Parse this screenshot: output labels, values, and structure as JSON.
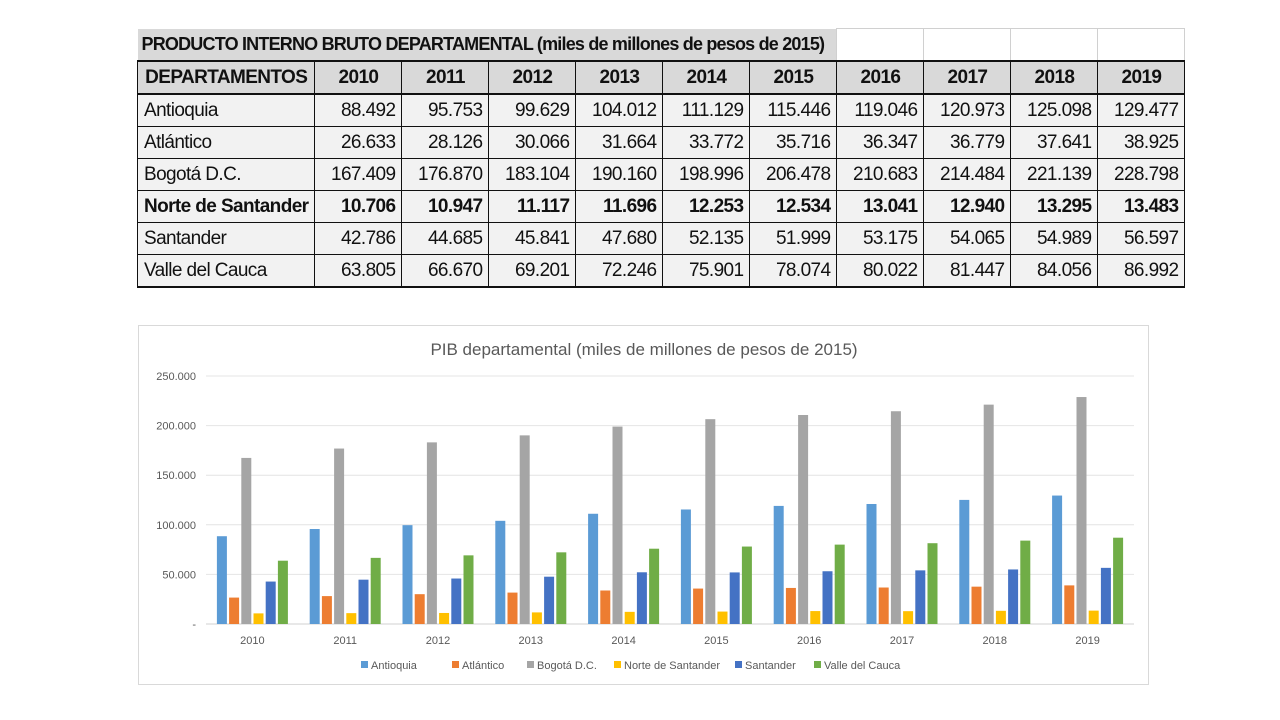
{
  "table": {
    "title": "PRODUCTO INTERNO BRUTO DEPARTAMENTAL (miles de millones de pesos de 2015)",
    "header": [
      "DEPARTAMENTOS",
      "2010",
      "2011",
      "2012",
      "2013",
      "2014",
      "2015",
      "2016",
      "2017",
      "2018",
      "2019"
    ],
    "rows": [
      {
        "name": "Antioquia",
        "bold": false,
        "values": [
          "88.492",
          "95.753",
          "99.629",
          "104.012",
          "111.129",
          "115.446",
          "119.046",
          "120.973",
          "125.098",
          "129.477"
        ]
      },
      {
        "name": "Atlántico",
        "bold": false,
        "values": [
          "26.633",
          "28.126",
          "30.066",
          "31.664",
          "33.772",
          "35.716",
          "36.347",
          "36.779",
          "37.641",
          "38.925"
        ]
      },
      {
        "name": "Bogotá D.C.",
        "bold": false,
        "values": [
          "167.409",
          "176.870",
          "183.104",
          "190.160",
          "198.996",
          "206.478",
          "210.683",
          "214.484",
          "221.139",
          "228.798"
        ]
      },
      {
        "name": "Norte de Santander",
        "bold": true,
        "values": [
          "10.706",
          "10.947",
          "11.117",
          "11.696",
          "12.253",
          "12.534",
          "13.041",
          "12.940",
          "13.295",
          "13.483"
        ]
      },
      {
        "name": "Santander",
        "bold": false,
        "values": [
          "42.786",
          "44.685",
          "45.841",
          "47.680",
          "52.135",
          "51.999",
          "53.175",
          "54.065",
          "54.989",
          "56.597"
        ]
      },
      {
        "name": "Valle del Cauca",
        "bold": false,
        "values": [
          "63.805",
          "66.670",
          "69.201",
          "72.246",
          "75.901",
          "78.074",
          "80.022",
          "81.447",
          "84.056",
          "86.992"
        ]
      }
    ]
  },
  "chart_data": {
    "type": "bar",
    "title": "PIB departamental (miles de millones de pesos de 2015)",
    "categories": [
      "2010",
      "2011",
      "2012",
      "2013",
      "2014",
      "2015",
      "2016",
      "2017",
      "2018",
      "2019"
    ],
    "ylim": [
      0,
      250000
    ],
    "yticks": [
      0,
      50000,
      100000,
      150000,
      200000,
      250000
    ],
    "ytick_labels": [
      "-",
      "50.000",
      "100.000",
      "150.000",
      "200.000",
      "250.000"
    ],
    "grid": true,
    "legend": "bottom",
    "series": [
      {
        "name": "Antioquia",
        "color": "#5b9bd5",
        "values": [
          88492,
          95753,
          99629,
          104012,
          111129,
          115446,
          119046,
          120973,
          125098,
          129477
        ]
      },
      {
        "name": "Atlántico",
        "color": "#ed7d31",
        "values": [
          26633,
          28126,
          30066,
          31664,
          33772,
          35716,
          36347,
          36779,
          37641,
          38925
        ]
      },
      {
        "name": "Bogotá D.C.",
        "color": "#a5a5a5",
        "values": [
          167409,
          176870,
          183104,
          190160,
          198996,
          206478,
          210683,
          214484,
          221139,
          228798
        ]
      },
      {
        "name": "Norte de Santander",
        "color": "#ffc000",
        "values": [
          10706,
          10947,
          11117,
          11696,
          12253,
          12534,
          13041,
          12940,
          13295,
          13483
        ]
      },
      {
        "name": "Santander",
        "color": "#4472c4",
        "values": [
          42786,
          44685,
          45841,
          47680,
          52135,
          51999,
          53175,
          54065,
          54989,
          56597
        ]
      },
      {
        "name": "Valle del Cauca",
        "color": "#70ad47",
        "values": [
          63805,
          66670,
          69201,
          72246,
          75901,
          78074,
          80022,
          81447,
          84056,
          86992
        ]
      }
    ]
  }
}
